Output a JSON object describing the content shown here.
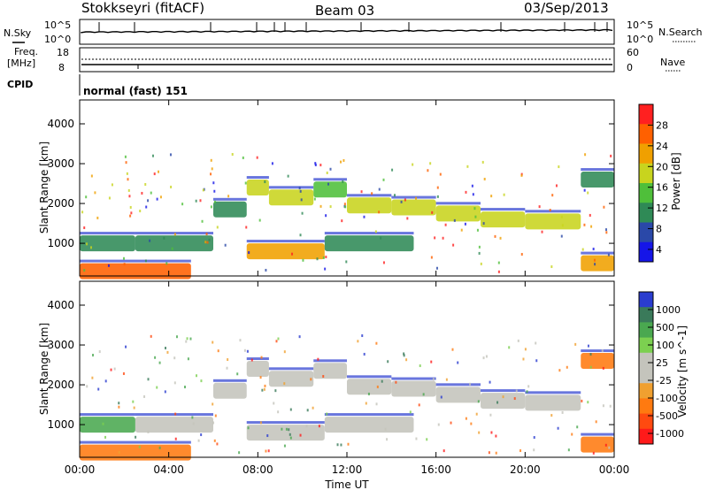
{
  "header": {
    "station": "Stokkseyri (fitACF)",
    "beam": "Beam 03",
    "date": "03/Sep/2013"
  },
  "noise_panel": {
    "left_label": "N.Sky",
    "right_label": "N.Search",
    "ticks": [
      "10^5",
      "10^0"
    ]
  },
  "freq_panel": {
    "left_label_1": "Freq.",
    "left_label_2": "[MHz]",
    "right_label": "Nave",
    "left_ticks": [
      "18",
      "8"
    ],
    "right_ticks": [
      "60",
      "0"
    ]
  },
  "cpid_panel": {
    "label": "CPID",
    "mode": "normal (fast) 151"
  },
  "colors": {
    "power_scale": [
      "#1515e8",
      "#2a48a8",
      "#2f8a56",
      "#4fbf3a",
      "#c8d41e",
      "#f0a000",
      "#ff6000",
      "#ff2020"
    ],
    "velocity_scale": [
      "#2a3ccf",
      "#3a7a5a",
      "#4aa850",
      "#7cd050",
      "#c4c4bc",
      "#c4c4bc",
      "#f0a030",
      "#ff7a10",
      "#ff4a10",
      "#ff1a1a"
    ]
  },
  "chart_data": [
    {
      "type": "heatmap",
      "ylabel": "Slant Range [km]",
      "ylim": [
        180,
        4600
      ],
      "yticks": [
        "4000",
        "3000",
        "2000",
        "1000"
      ],
      "xlim": [
        "00:00",
        "24:00"
      ],
      "colorbar_label": "Power [dB]",
      "colorbar_ticks": [
        "28",
        "24",
        "20",
        "16",
        "12",
        "8",
        "4"
      ],
      "colorbar_range": [
        0,
        30
      ],
      "bands": [
        {
          "start": "00:00",
          "end": "02:30",
          "range_km": 1000,
          "level": 9
        },
        {
          "start": "02:30",
          "end": "06:00",
          "range_km": 1000,
          "level": 10
        },
        {
          "start": "06:00",
          "end": "07:30",
          "range_km": 1850,
          "level": 10
        },
        {
          "start": "07:30",
          "end": "08:30",
          "range_km": 2400,
          "level": 18
        },
        {
          "start": "08:30",
          "end": "10:30",
          "range_km": 2150,
          "level": 15
        },
        {
          "start": "10:30",
          "end": "12:00",
          "range_km": 2350,
          "level": 14
        },
        {
          "start": "12:00",
          "end": "14:00",
          "range_km": 1950,
          "level": 16
        },
        {
          "start": "14:00",
          "end": "16:00",
          "range_km": 1900,
          "level": 15
        },
        {
          "start": "16:00",
          "end": "18:00",
          "range_km": 1750,
          "level": 16
        },
        {
          "start": "18:00",
          "end": "20:00",
          "range_km": 1600,
          "level": 18
        },
        {
          "start": "20:00",
          "end": "22:30",
          "range_km": 1550,
          "level": 15
        },
        {
          "start": "22:30",
          "end": "24:00",
          "range_km": 2600,
          "level": 9
        },
        {
          "start": "07:30",
          "end": "11:00",
          "range_km": 800,
          "level": 20
        },
        {
          "start": "11:00",
          "end": "15:00",
          "range_km": 1000,
          "level": 8
        },
        {
          "start": "00:00",
          "end": "05:00",
          "range_km": 300,
          "level": 24
        },
        {
          "start": "22:30",
          "end": "24:00",
          "range_km": 500,
          "level": 20
        }
      ]
    },
    {
      "type": "heatmap",
      "ylabel": "Slant Range [km]",
      "ylim": [
        180,
        4600
      ],
      "yticks": [
        "4000",
        "3000",
        "2000",
        "1000"
      ],
      "xlabel": "Time UT",
      "xticks": [
        "00:00",
        "04:00",
        "08:00",
        "12:00",
        "16:00",
        "20:00",
        "00:00"
      ],
      "xlim": [
        "00:00",
        "24:00"
      ],
      "colorbar_label": "Velocity [m s^-1]",
      "colorbar_ticks": [
        "1000",
        "500",
        "100",
        "25",
        "-25",
        "-100",
        "-500",
        "-1000"
      ],
      "colorbar_range": [
        -1200,
        1200
      ],
      "bands": [
        {
          "start": "00:00",
          "end": "02:30",
          "range_km": 1000,
          "velocity": 150
        },
        {
          "start": "02:30",
          "end": "06:00",
          "range_km": 1000,
          "velocity": 0
        },
        {
          "start": "06:00",
          "end": "07:30",
          "range_km": 1850,
          "velocity": 0
        },
        {
          "start": "07:30",
          "end": "08:30",
          "range_km": 2400,
          "velocity": 0
        },
        {
          "start": "08:30",
          "end": "10:30",
          "range_km": 2150,
          "velocity": 0
        },
        {
          "start": "10:30",
          "end": "12:00",
          "range_km": 2350,
          "velocity": 0
        },
        {
          "start": "12:00",
          "end": "14:00",
          "range_km": 1950,
          "velocity": 0
        },
        {
          "start": "14:00",
          "end": "16:00",
          "range_km": 1900,
          "velocity": 0
        },
        {
          "start": "16:00",
          "end": "18:00",
          "range_km": 1750,
          "velocity": 0
        },
        {
          "start": "18:00",
          "end": "20:00",
          "range_km": 1600,
          "velocity": 0
        },
        {
          "start": "20:00",
          "end": "22:30",
          "range_km": 1550,
          "velocity": 0
        },
        {
          "start": "22:30",
          "end": "24:00",
          "range_km": 2600,
          "velocity": -300
        },
        {
          "start": "07:30",
          "end": "11:00",
          "range_km": 800,
          "velocity": 0
        },
        {
          "start": "11:00",
          "end": "15:00",
          "range_km": 1000,
          "velocity": 0
        },
        {
          "start": "00:00",
          "end": "05:00",
          "range_km": 300,
          "velocity": -200
        },
        {
          "start": "22:30",
          "end": "24:00",
          "range_km": 500,
          "velocity": -400
        }
      ]
    }
  ]
}
